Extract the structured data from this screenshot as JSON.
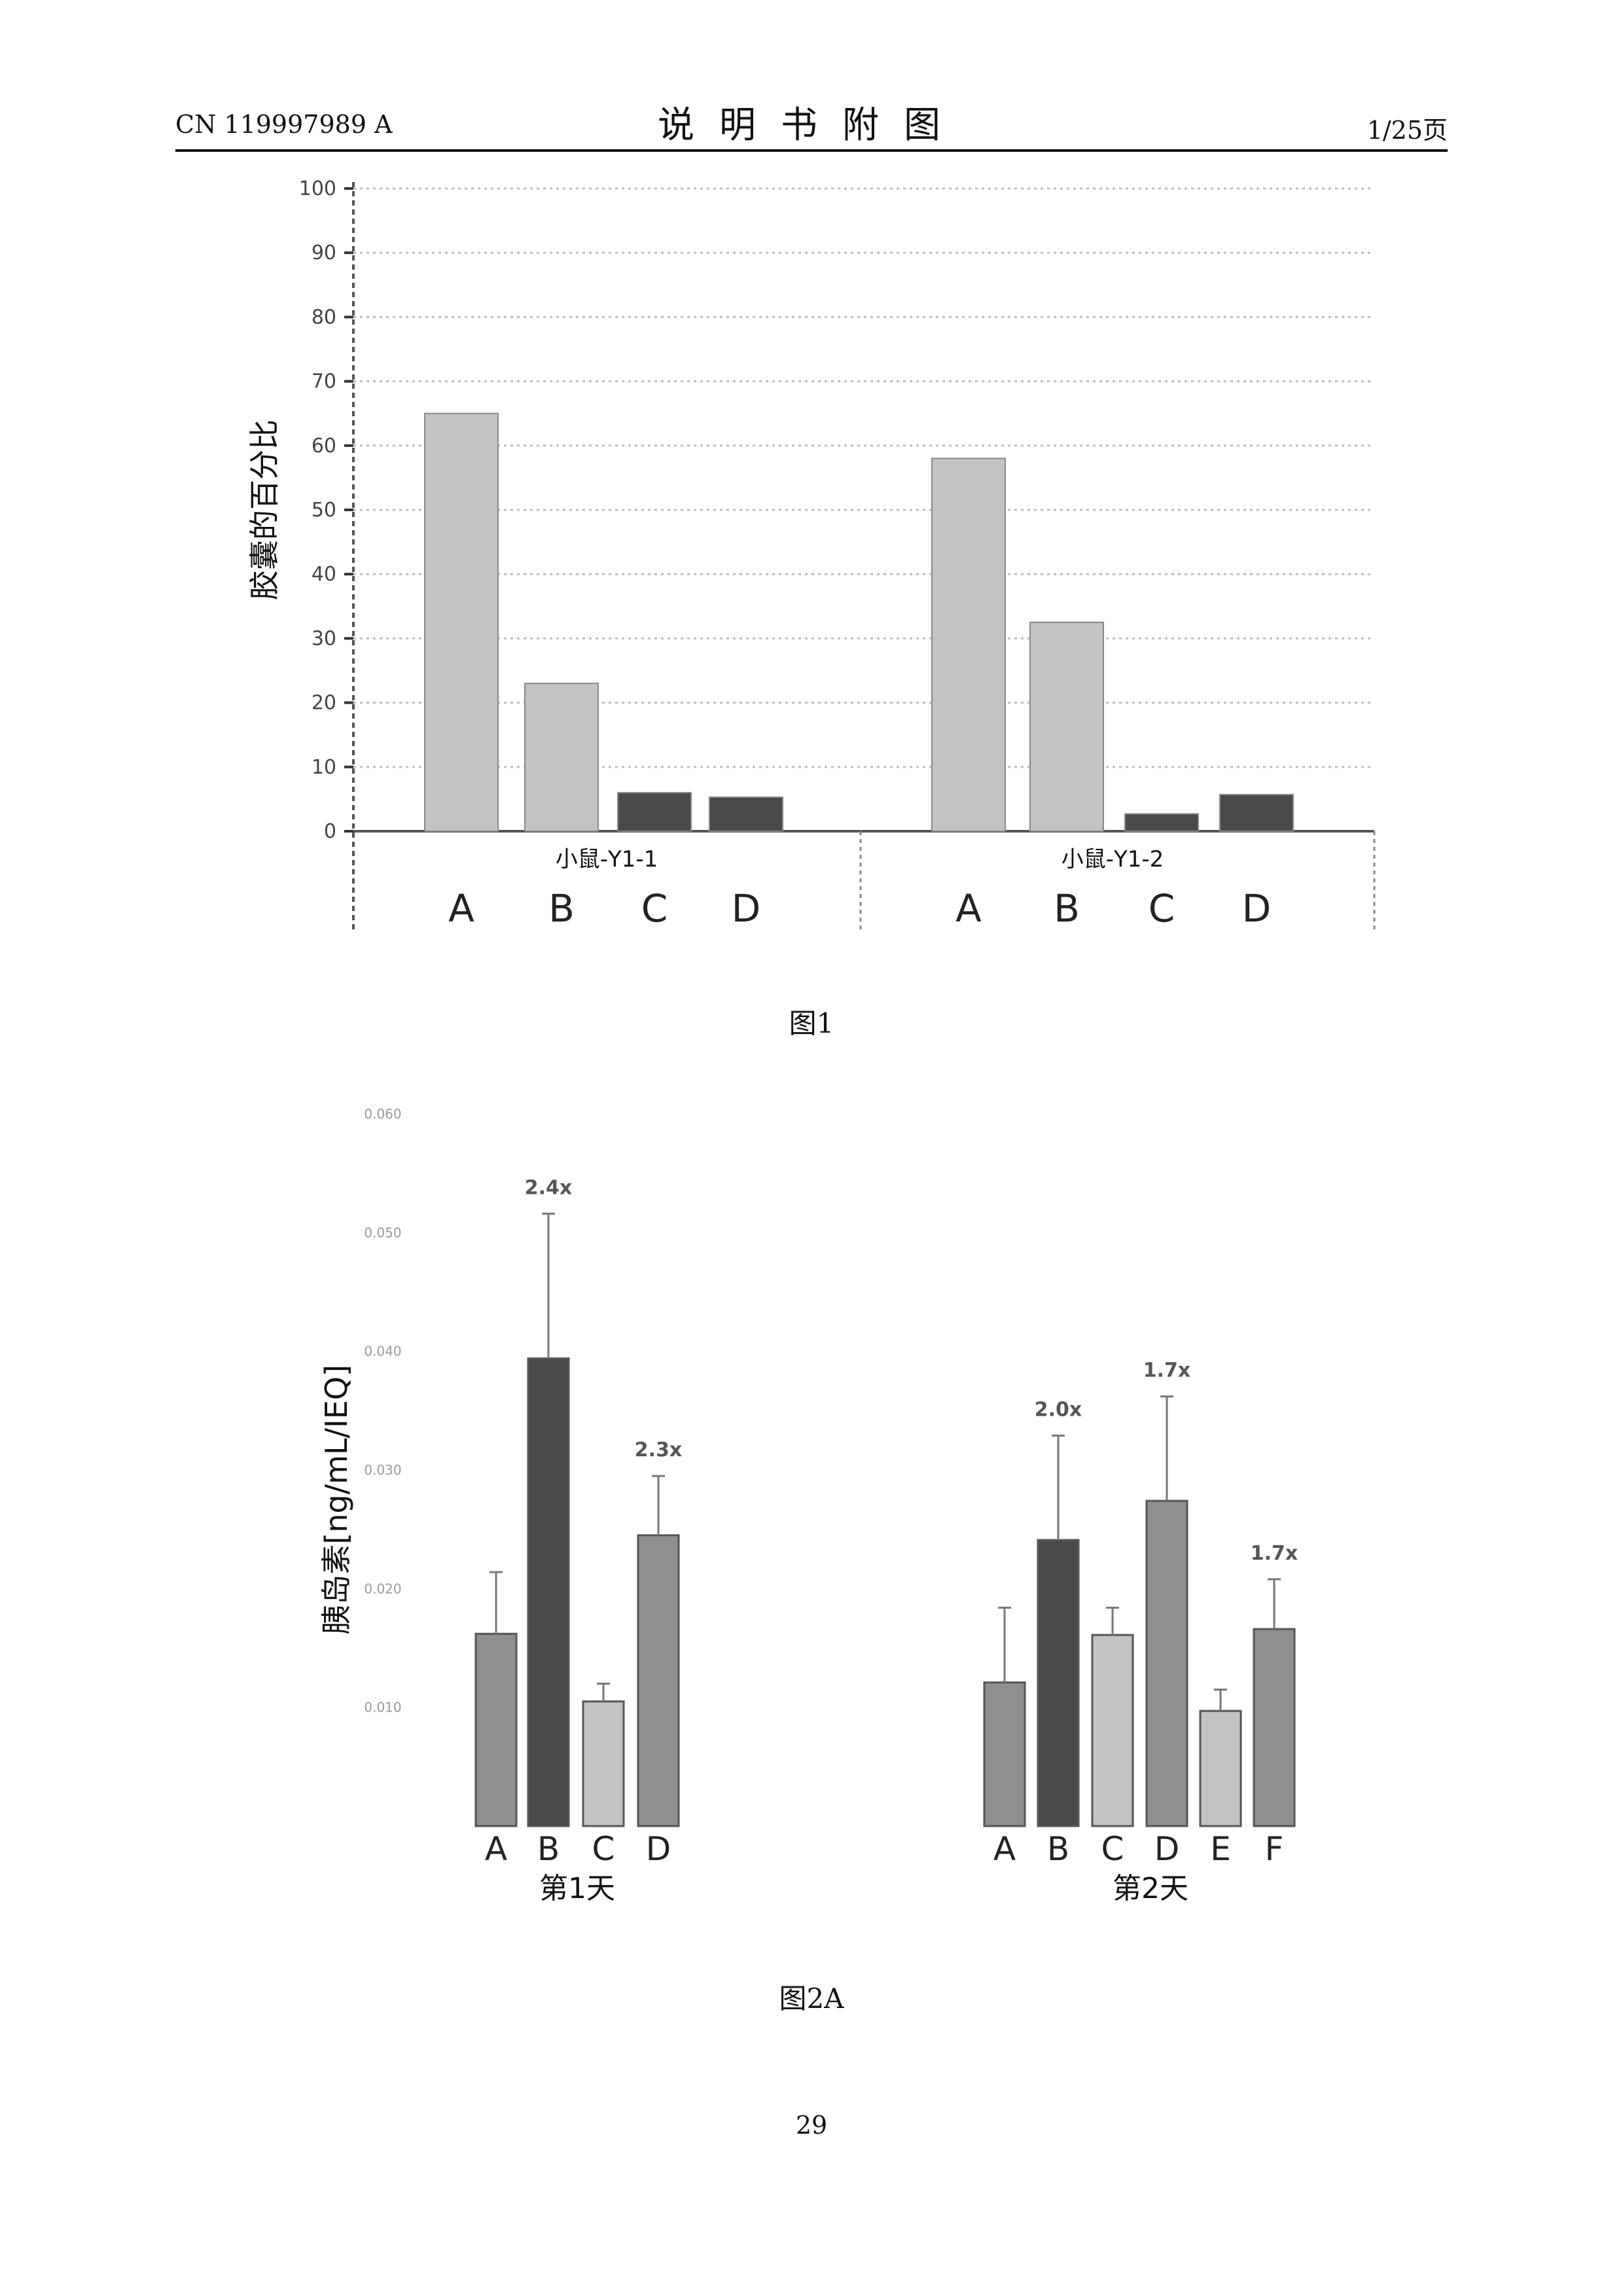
{
  "header": {
    "doc_number": "CN 119997989 A",
    "title": "说明书附图",
    "page_of": "1/25页"
  },
  "figures": {
    "fig1_caption": "图1",
    "fig2a_caption": "图2A"
  },
  "page_number": "29",
  "colors": {
    "bar_light": "#c3c3c3",
    "bar_mid": "#8f8f8f",
    "bar_dark": "#4a4a4a",
    "error_bar": "#777777",
    "grid": "#bdbdbd"
  },
  "chart_data": [
    {
      "type": "bar",
      "ylabel": "胶囊的百分比",
      "ylim": [
        0,
        100
      ],
      "yticks": [
        0,
        10,
        20,
        30,
        40,
        50,
        60,
        70,
        80,
        90,
        100
      ],
      "grid": true,
      "groups": [
        {
          "name": "小鼠-Y1-1",
          "categories": [
            "A",
            "B",
            "C",
            "D"
          ],
          "values": [
            65,
            23,
            6,
            5.3
          ],
          "shades": [
            "light",
            "light",
            "dark",
            "dark"
          ]
        },
        {
          "name": "小鼠-Y1-2",
          "categories": [
            "A",
            "B",
            "C",
            "D"
          ],
          "values": [
            58,
            32.5,
            2.7,
            5.7
          ],
          "shades": [
            "light",
            "light",
            "dark",
            "dark"
          ]
        }
      ]
    },
    {
      "type": "bar",
      "ylabel": "胰岛素[ng/mL/IEQ]",
      "ylim": [
        0,
        0.06
      ],
      "yticks": [
        "0.060",
        "0.050",
        "0.040",
        "0.030",
        "0.020",
        "0.010"
      ],
      "ytick_values": [
        0.06,
        0.05,
        0.04,
        0.03,
        0.02,
        0.01
      ],
      "grid": false,
      "groups": [
        {
          "name": "第1天",
          "categories": [
            "A",
            "B",
            "C",
            "D"
          ],
          "values": [
            0.0162,
            0.0394,
            0.0105,
            0.0245
          ],
          "errors": [
            0.0052,
            0.0122,
            0.0015,
            0.005
          ],
          "annotations": [
            "",
            "2.4x",
            "",
            "2.3x"
          ],
          "shades": [
            "mid",
            "dark",
            "light",
            "mid"
          ]
        },
        {
          "name": "第2天",
          "categories": [
            "A",
            "B",
            "C",
            "D",
            "E",
            "F"
          ],
          "values": [
            0.0121,
            0.0241,
            0.0161,
            0.0274,
            0.0097,
            0.0166
          ],
          "errors": [
            0.0063,
            0.0088,
            0.0023,
            0.0088,
            0.0018,
            0.0042
          ],
          "annotations": [
            "",
            "2.0x",
            "",
            "1.7x",
            "",
            "1.7x"
          ],
          "shades": [
            "mid",
            "dark",
            "light",
            "mid",
            "light",
            "mid"
          ]
        }
      ]
    }
  ]
}
